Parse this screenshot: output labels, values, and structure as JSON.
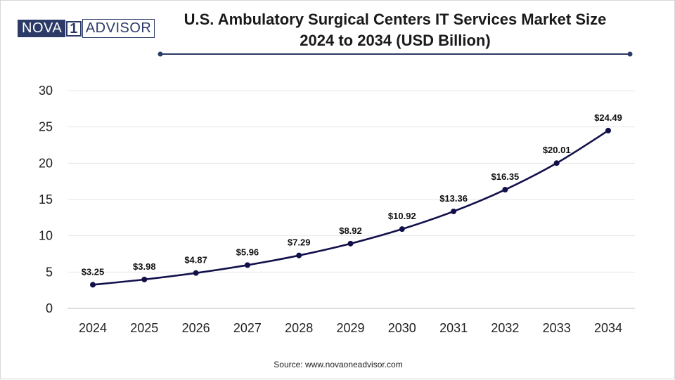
{
  "logo": {
    "part1": "NOVA",
    "part2": "1",
    "part3": "ADVISOR"
  },
  "title": {
    "line1": "U.S. Ambulatory Surgical Centers IT Services Market Size",
    "line2": "2024 to 2034 (USD Billion)"
  },
  "source": "Source: www.novaoneadvisor.com",
  "colors": {
    "line": "#12104a",
    "accent": "#2b3a66",
    "grid": "#e6e6e6"
  },
  "chart_data": {
    "type": "line",
    "title": "U.S. Ambulatory Surgical Centers IT Services Market Size 2024 to 2034 (USD Billion)",
    "xlabel": "",
    "ylabel": "",
    "categories": [
      "2024",
      "2025",
      "2026",
      "2027",
      "2028",
      "2029",
      "2030",
      "2031",
      "2032",
      "2033",
      "2034"
    ],
    "values": [
      3.25,
      3.98,
      4.87,
      5.96,
      7.29,
      8.92,
      10.92,
      13.36,
      16.35,
      20.01,
      24.49
    ],
    "data_labels": [
      "$3.25",
      "$3.98",
      "$4.87",
      "$5.96",
      "$7.29",
      "$8.92",
      "$10.92",
      "$13.36",
      "$16.35",
      "$20.01",
      "$24.49"
    ],
    "yticks": [
      "0",
      "5",
      "10",
      "15",
      "20",
      "25",
      "30"
    ],
    "ylim": [
      0,
      30
    ],
    "grid": true,
    "legend": "none"
  }
}
